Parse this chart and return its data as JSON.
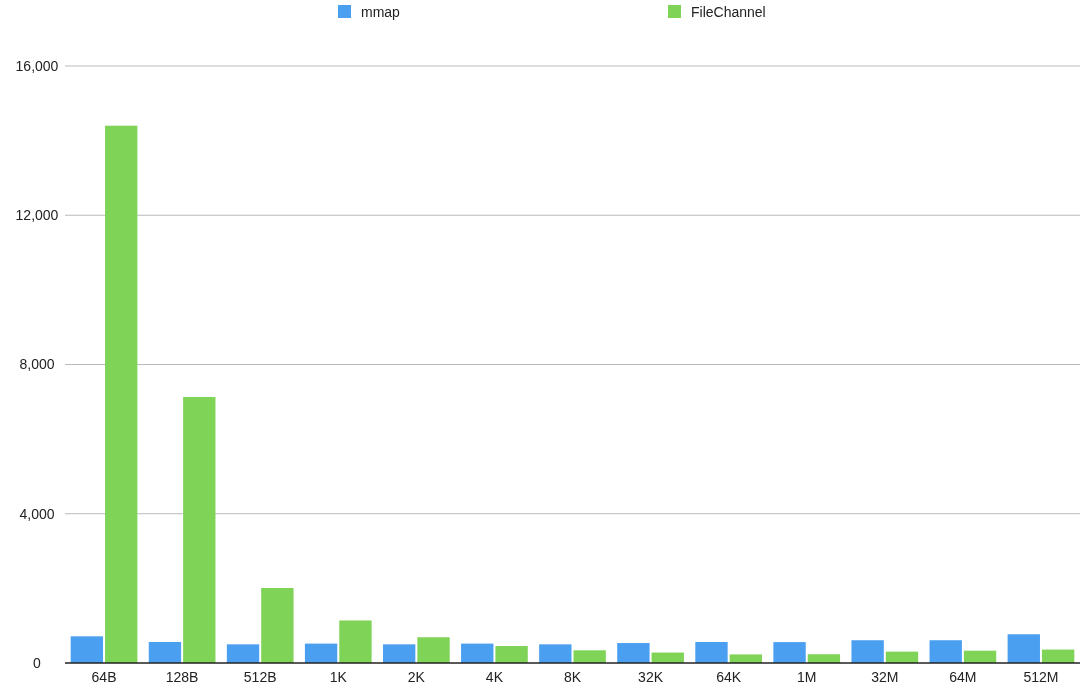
{
  "chart_data": {
    "type": "bar",
    "categories": [
      "64B",
      "128B",
      "512B",
      "1K",
      "2K",
      "4K",
      "8K",
      "32K",
      "64K",
      "1M",
      "32M",
      "64M",
      "512M"
    ],
    "series": [
      {
        "name": "mmap",
        "color": "#4a9ff0",
        "values": [
          715,
          563,
          500,
          520,
          500,
          520,
          500,
          535,
          563,
          560,
          610,
          610,
          770
        ]
      },
      {
        "name": "FileChannel",
        "color": "#7fd458",
        "values": [
          14400,
          7130,
          2010,
          1140,
          690,
          455,
          340,
          280,
          230,
          235,
          305,
          330,
          360
        ]
      }
    ],
    "ylim": [
      0,
      16000
    ],
    "yticks": [
      {
        "value": 0,
        "label": "0"
      },
      {
        "value": 4000,
        "label": "4,000"
      },
      {
        "value": 8000,
        "label": "8,000"
      },
      {
        "value": 12000,
        "label": "12,000"
      },
      {
        "value": 16000,
        "label": "16,000"
      }
    ],
    "grid": "y",
    "legend": "top"
  }
}
